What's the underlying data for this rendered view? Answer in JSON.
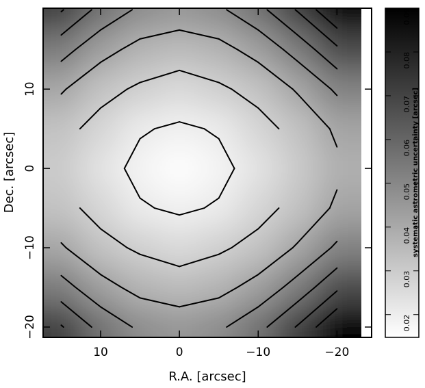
{
  "chart_data": {
    "type": "contour",
    "xlabel": "R.A. [arcsec]",
    "ylabel": "Dec. [arcsec]",
    "xlim": [
      17.3,
      -24.4
    ],
    "ylim": [
      -21.3,
      20.2
    ],
    "image_extent_x": [
      17.3,
      -23.1
    ],
    "image_extent_y": [
      -21.3,
      20.2
    ],
    "xticks": [
      10,
      0,
      {
        "value": -10,
        "label": "−10"
      },
      {
        "value": -20,
        "label": "−20"
      }
    ],
    "yticks": [
      {
        "value": -20,
        "label": "−20"
      },
      {
        "value": -10,
        "label": "−10"
      },
      0,
      10
    ],
    "x": [
      15,
      10,
      5,
      0,
      -5,
      -10,
      -15,
      -20
    ],
    "y": [
      20,
      15,
      10,
      5,
      0,
      -5,
      -10,
      -15,
      -20
    ],
    "z": [
      [
        0.0708,
        0.0568,
        0.0483,
        0.0454,
        0.0483,
        0.0568,
        0.0708,
        0.0902
      ],
      [
        0.0538,
        0.0434,
        0.037,
        0.0348,
        0.037,
        0.0434,
        0.0538,
        0.068
      ],
      [
        0.041,
        0.0329,
        0.0286,
        0.0257,
        0.0286,
        0.0329,
        0.041,
        0.0516
      ],
      [
        0.0329,
        0.0268,
        0.0207,
        0.0188,
        0.0207,
        0.0268,
        0.0329,
        0.0416
      ],
      [
        0.03,
        0.0232,
        0.0179,
        0.015,
        0.0179,
        0.0232,
        0.03,
        0.0381
      ],
      [
        0.0329,
        0.0268,
        0.0207,
        0.0188,
        0.0207,
        0.0268,
        0.0329,
        0.0416
      ],
      [
        0.041,
        0.0329,
        0.0286,
        0.0257,
        0.0286,
        0.0329,
        0.041,
        0.0516
      ],
      [
        0.0538,
        0.0434,
        0.037,
        0.0348,
        0.037,
        0.0434,
        0.0538,
        0.068
      ],
      [
        0.0708,
        0.0568,
        0.0483,
        0.0454,
        0.0483,
        0.0568,
        0.0708,
        0.0902
      ]
    ],
    "contour_levels": [
      0.02,
      0.03,
      0.04,
      0.05,
      0.06,
      0.07,
      0.08
    ],
    "colorbar": {
      "label": "systematic astrometric uncertainty [arcsec]",
      "clim": [
        0.0148,
        0.09
      ],
      "ticks": [
        0.02,
        0.03,
        0.04,
        0.05,
        0.06,
        0.07,
        0.08,
        0.09
      ]
    }
  }
}
